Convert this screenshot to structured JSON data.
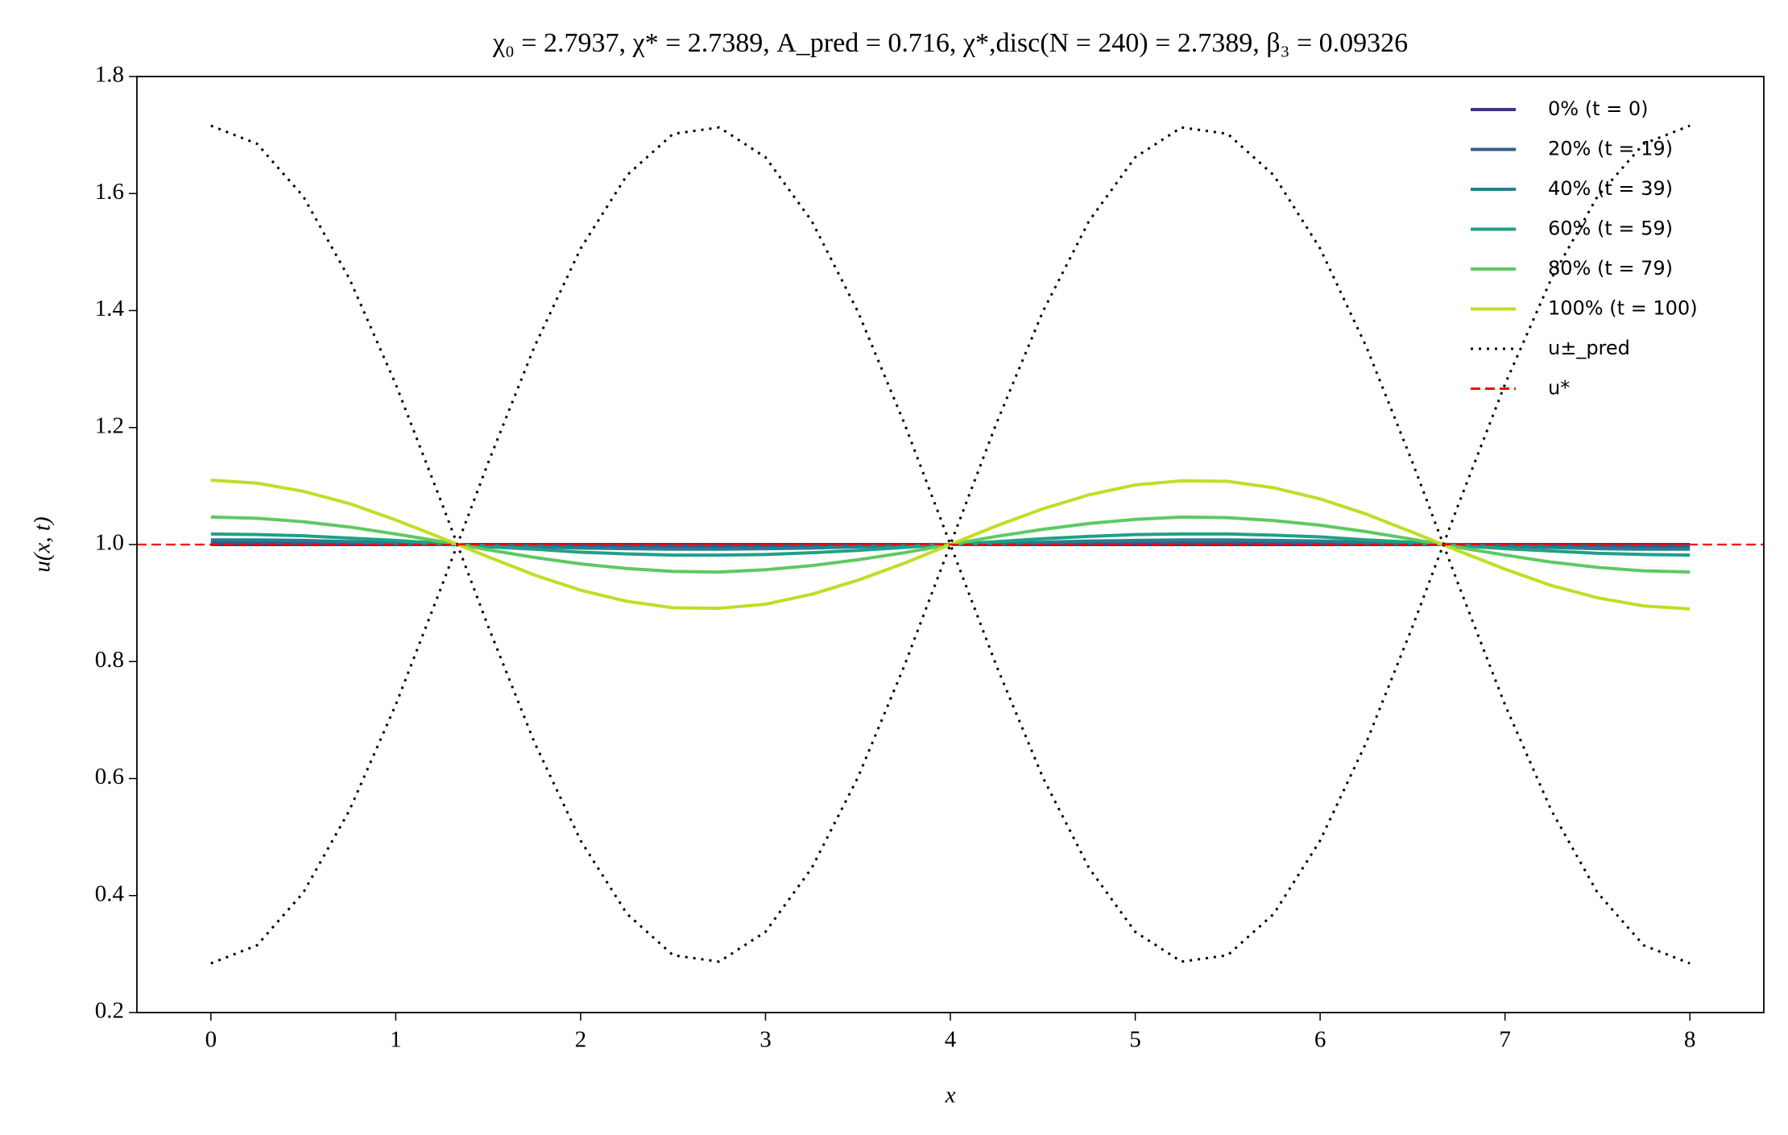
{
  "chart_data": {
    "type": "line",
    "title": "χ₀ = 2.7937,  χ* = 2.7389,  A_pred = 0.716,  χ*,disc(N = 240) = 2.7389,  β₃ = 0.09326",
    "xlabel": "x",
    "ylabel": "u(x, t)",
    "x": [
      0,
      0.25,
      0.5,
      0.75,
      1,
      1.25,
      1.5,
      1.75,
      2,
      2.25,
      2.5,
      2.75,
      3,
      3.25,
      3.5,
      3.75,
      4,
      4.25,
      4.5,
      4.75,
      5,
      5.25,
      5.5,
      5.75,
      6,
      6.25,
      6.5,
      6.75,
      7,
      7.25,
      7.5,
      7.75,
      8
    ],
    "series": [
      {
        "name": "0% (t = 0)",
        "color": "#46327e",
        "style": "solid",
        "values": [
          1,
          1,
          1,
          1,
          1,
          1,
          1,
          1,
          1,
          1,
          1,
          1,
          1,
          1,
          1,
          1,
          1,
          1,
          1,
          1,
          1,
          1,
          1,
          1,
          1,
          1,
          1,
          1,
          1,
          1,
          1,
          1,
          1
        ]
      },
      {
        "name": "20% (t = 19)",
        "color": "#365c8d",
        "style": "solid",
        "values": [
          1.003,
          1.003,
          1.002,
          1.002,
          1.001,
          1,
          0.999,
          0.999,
          0.998,
          0.997,
          0.997,
          0.997,
          0.997,
          0.998,
          0.998,
          0.999,
          1,
          1.001,
          1.002,
          1.002,
          1.003,
          1.003,
          1.003,
          1.003,
          1.002,
          1.001,
          1.001,
          1,
          0.999,
          0.998,
          0.998,
          0.997,
          0.997
        ]
      },
      {
        "name": "40% (t = 39)",
        "color": "#277f8e",
        "style": "solid",
        "values": [
          1.008,
          1.008,
          1.007,
          1.005,
          1.003,
          1.001,
          0.998,
          0.996,
          0.994,
          0.993,
          0.992,
          0.992,
          0.993,
          0.994,
          0.996,
          0.998,
          1,
          1.002,
          1.004,
          1.006,
          1.007,
          1.008,
          1.008,
          1.007,
          1.006,
          1.004,
          1.002,
          0.999,
          0.997,
          0.995,
          0.993,
          0.992,
          0.992
        ]
      },
      {
        "name": "60% (t = 59)",
        "color": "#1fa187",
        "style": "solid",
        "values": [
          1.018,
          1.017,
          1.015,
          1.011,
          1.007,
          1.002,
          0.996,
          0.992,
          0.987,
          0.984,
          0.982,
          0.982,
          0.983,
          0.986,
          0.99,
          0.995,
          1,
          1.005,
          1.01,
          1.014,
          1.017,
          1.018,
          1.018,
          1.016,
          1.013,
          1.008,
          1.004,
          0.998,
          0.993,
          0.989,
          0.985,
          0.983,
          0.982
        ]
      },
      {
        "name": "80% (t = 79)",
        "color": "#5ec962",
        "style": "solid",
        "values": [
          1.047,
          1.045,
          1.039,
          1.03,
          1.018,
          1.005,
          0.991,
          0.978,
          0.967,
          0.959,
          0.954,
          0.953,
          0.957,
          0.964,
          0.974,
          0.986,
          1,
          1.014,
          1.026,
          1.036,
          1.043,
          1.047,
          1.046,
          1.041,
          1.033,
          1.022,
          1.009,
          0.995,
          0.982,
          0.97,
          0.961,
          0.955,
          0.953
        ]
      },
      {
        "name": "100% (t = 100)",
        "color": "#bddf26",
        "style": "solid",
        "values": [
          1.11,
          1.105,
          1.091,
          1.07,
          1.042,
          1.011,
          0.979,
          0.948,
          0.922,
          0.903,
          0.892,
          0.891,
          0.898,
          0.915,
          0.939,
          0.968,
          1,
          1.032,
          1.061,
          1.085,
          1.102,
          1.109,
          1.108,
          1.097,
          1.078,
          1.052,
          1.021,
          0.989,
          0.958,
          0.93,
          0.909,
          0.895,
          0.89
        ]
      },
      {
        "name": "u±_pred",
        "color": "#000000",
        "style": "dotted",
        "values": [
          1.716,
          1.685,
          1.595,
          1.454,
          1.274,
          1.07,
          0.86,
          0.662,
          0.494,
          0.369,
          0.298,
          0.287,
          0.338,
          0.447,
          0.602,
          0.792,
          1,
          1.208,
          1.398,
          1.553,
          1.662,
          1.713,
          1.702,
          1.631,
          1.506,
          1.338,
          1.14,
          0.93,
          0.726,
          0.546,
          0.405,
          0.315,
          0.284
        ],
        "lower": [
          0.284,
          0.315,
          0.405,
          0.546,
          0.726,
          0.93,
          1.14,
          1.338,
          1.506,
          1.631,
          1.702,
          1.713,
          1.662,
          1.553,
          1.398,
          1.208,
          1,
          0.792,
          0.602,
          0.447,
          0.338,
          0.287,
          0.298,
          0.369,
          0.494,
          0.662,
          0.86,
          1.07,
          1.274,
          1.454,
          1.595,
          1.685,
          1.716
        ]
      }
    ],
    "hline": {
      "name": "u*",
      "value": 1,
      "color": "#ff0000",
      "style": "dashed"
    },
    "xlim": [
      -0.4,
      8.4
    ],
    "xticks": [
      0,
      1,
      2,
      3,
      4,
      5,
      6,
      7,
      8
    ],
    "ylim": [
      0.2,
      1.8
    ],
    "yticks": [
      0.2,
      0.4,
      0.6,
      0.8,
      {
        "value": 1,
        "label": "1.0"
      },
      1.2,
      1.4,
      1.6,
      1.8
    ],
    "grid": false,
    "legend": "upper right"
  }
}
